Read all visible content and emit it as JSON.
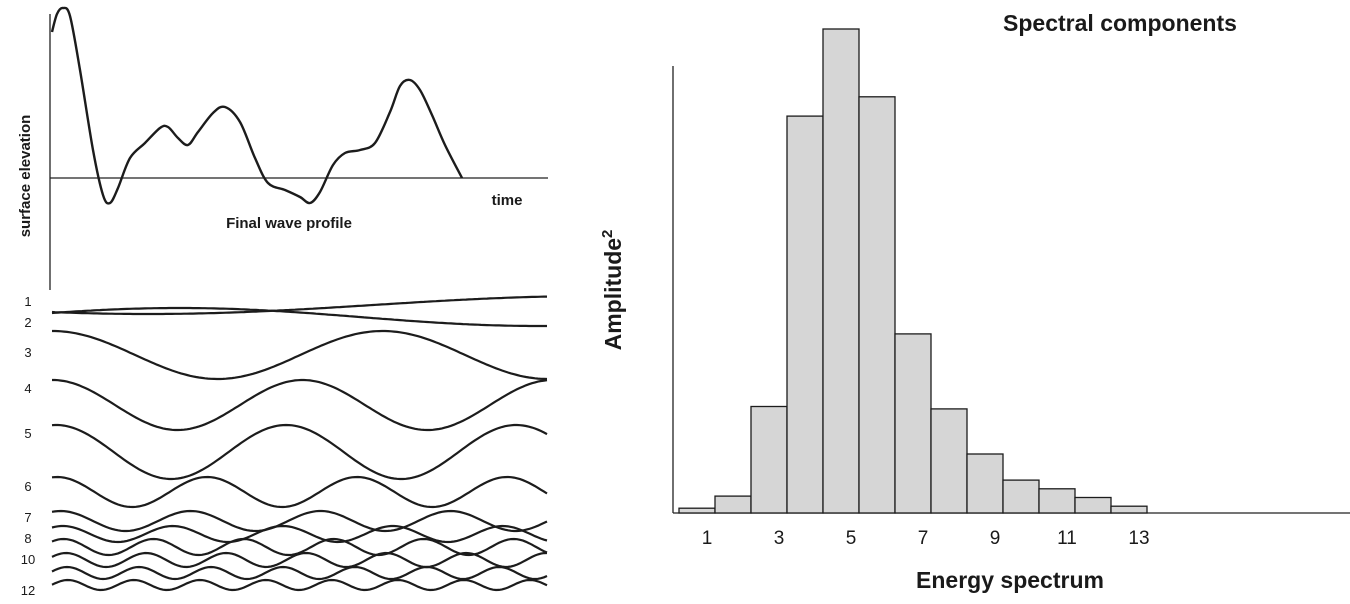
{
  "left_panel": {
    "ylabel": "surface elevation",
    "xlabel": "time",
    "profile_label": "Final wave profile",
    "component_labels": [
      "1",
      "2",
      "3",
      "4",
      "5",
      "6",
      "7",
      "8",
      "10",
      "12"
    ]
  },
  "chart_data": {
    "type": "bar",
    "title": "Spectral components",
    "xlabel": "Energy spectrum",
    "ylabel": "Amplitude",
    "ylabel_superscript": "2",
    "categories": [
      "1",
      "2",
      "3",
      "4",
      "5",
      "6",
      "7",
      "8",
      "9",
      "10",
      "11",
      "12",
      "13"
    ],
    "values": [
      1,
      3.5,
      22,
      82,
      100,
      86,
      37,
      21.5,
      12.2,
      6.8,
      5,
      3.2,
      1.4
    ],
    "xticks": [
      "1",
      "3",
      "5",
      "7",
      "9",
      "11",
      "13"
    ],
    "bar_color": "#d6d6d6",
    "grid": false,
    "legend": false
  }
}
